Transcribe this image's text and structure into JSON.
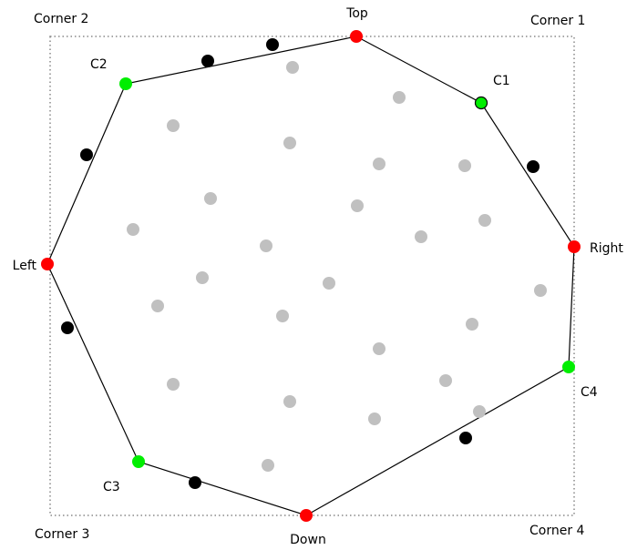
{
  "colors": {
    "background": "#ffffff",
    "line": "#000000",
    "bounding_box": "#888888",
    "extreme_point": "#ff0000",
    "corner_point": "#00ee00",
    "extra_hull_point": "#000000",
    "interior_point": "#c0c0c0"
  },
  "labels": {
    "top": "Top",
    "right": "Right",
    "down": "Down",
    "left": "Left",
    "c1": "C1",
    "c2": "C2",
    "c3": "C3",
    "c4": "C4",
    "corner1": "Corner 1",
    "corner2": "Corner 2",
    "corner3": "Corner 3",
    "corner4": "Corner 4"
  }
}
